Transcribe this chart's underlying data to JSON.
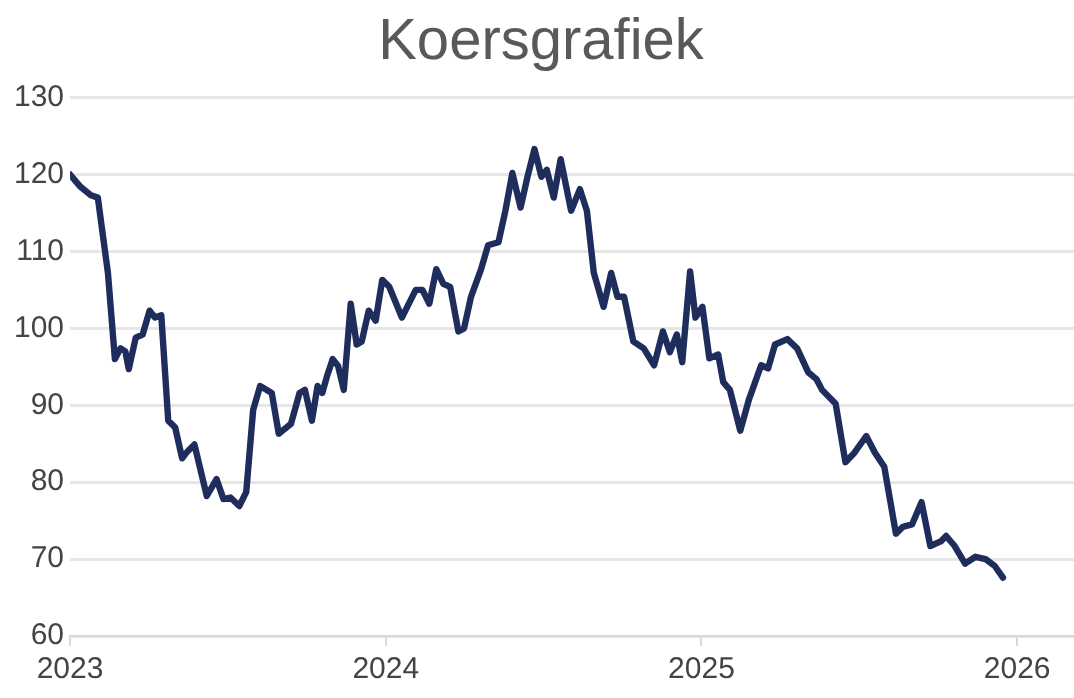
{
  "chart_data": {
    "type": "line",
    "title": "Koersgrafiek",
    "x": [
      2023.0,
      2023.033,
      2023.066,
      2023.088,
      2023.12,
      2023.142,
      2023.16,
      2023.175,
      2023.186,
      2023.208,
      2023.23,
      2023.252,
      2023.269,
      2023.289,
      2023.311,
      2023.333,
      2023.355,
      2023.372,
      2023.394,
      2023.433,
      2023.464,
      2023.486,
      2023.508,
      2023.536,
      2023.558,
      2023.58,
      2023.602,
      2023.639,
      2023.661,
      2023.7,
      2023.727,
      2023.744,
      2023.766,
      2023.784,
      2023.799,
      2023.814,
      2023.832,
      2023.849,
      2023.867,
      2023.889,
      2023.908,
      2023.924,
      2023.946,
      2023.968,
      2023.989,
      2024.011,
      2024.051,
      2024.095,
      2024.116,
      2024.138,
      2024.16,
      2024.182,
      2024.204,
      2024.23,
      2024.248,
      2024.27,
      2024.302,
      2024.324,
      2024.357,
      2024.379,
      2024.401,
      2024.427,
      2024.449,
      2024.471,
      2024.493,
      2024.51,
      2024.532,
      2024.554,
      2024.587,
      2024.615,
      2024.637,
      2024.659,
      2024.69,
      2024.714,
      2024.734,
      2024.755,
      2024.784,
      2024.817,
      2024.85,
      2024.878,
      2024.9,
      2024.922,
      2024.939,
      2024.964,
      2024.981,
      2025.003,
      2025.025,
      2025.053,
      2025.069,
      2025.09,
      2025.123,
      2025.15,
      2025.189,
      2025.211,
      2025.233,
      2025.272,
      2025.303,
      2025.338,
      2025.364,
      2025.382,
      2025.425,
      2025.456,
      2025.484,
      2025.522,
      2025.55,
      2025.579,
      2025.616,
      2025.638,
      2025.667,
      2025.697,
      2025.725,
      2025.758,
      2025.775,
      2025.802,
      2025.835,
      2025.868,
      2025.9,
      2025.929,
      2025.955
    ],
    "series": [
      {
        "color": "#1f2d5c",
        "values": [
          120,
          118.4,
          117.3,
          117,
          107.2,
          96,
          97.4,
          97,
          94.7,
          98.8,
          99.2,
          102.3,
          101.4,
          101.7,
          88,
          87.1,
          83.1,
          84,
          84.9,
          78.2,
          80.4,
          77.8,
          78,
          76.9,
          78.7,
          89.4,
          92.5,
          91.6,
          86.3,
          87.6,
          91.6,
          92,
          88,
          92.5,
          91.6,
          93.8,
          96,
          95.1,
          92,
          103.2,
          97.9,
          98.3,
          102.3,
          101,
          106.3,
          105.4,
          101.4,
          105,
          105,
          103.2,
          107.7,
          105.8,
          105.4,
          99.6,
          100,
          104.1,
          107.7,
          110.8,
          111.2,
          115.3,
          120.2,
          115.7,
          119.7,
          123.3,
          119.7,
          120.6,
          117,
          122,
          115.3,
          118.1,
          115.3,
          107.2,
          102.8,
          107.2,
          104.1,
          104.1,
          98.3,
          97.4,
          95.2,
          99.6,
          96.9,
          99.2,
          95.6,
          107.4,
          101.4,
          102.8,
          96.1,
          96.6,
          93,
          92,
          86.7,
          90.7,
          95.2,
          94.8,
          97.9,
          98.6,
          97.4,
          94.3,
          93.4,
          92,
          90.2,
          82.6,
          83.8,
          86,
          83.8,
          82,
          73.3,
          74.2,
          74.5,
          77.4,
          71.7,
          72.3,
          73,
          71.7,
          69.4,
          70.3,
          70,
          69.1,
          67.6
        ]
      }
    ],
    "xlim": [
      2023,
      2026.18
    ],
    "xticks": [
      2023,
      2024,
      2025,
      2026
    ],
    "ylim": [
      60,
      130
    ],
    "yticks": [
      60,
      70,
      80,
      90,
      100,
      110,
      120,
      130
    ],
    "grid": "y",
    "legend": false,
    "marker": "none",
    "line_style": "solid"
  }
}
